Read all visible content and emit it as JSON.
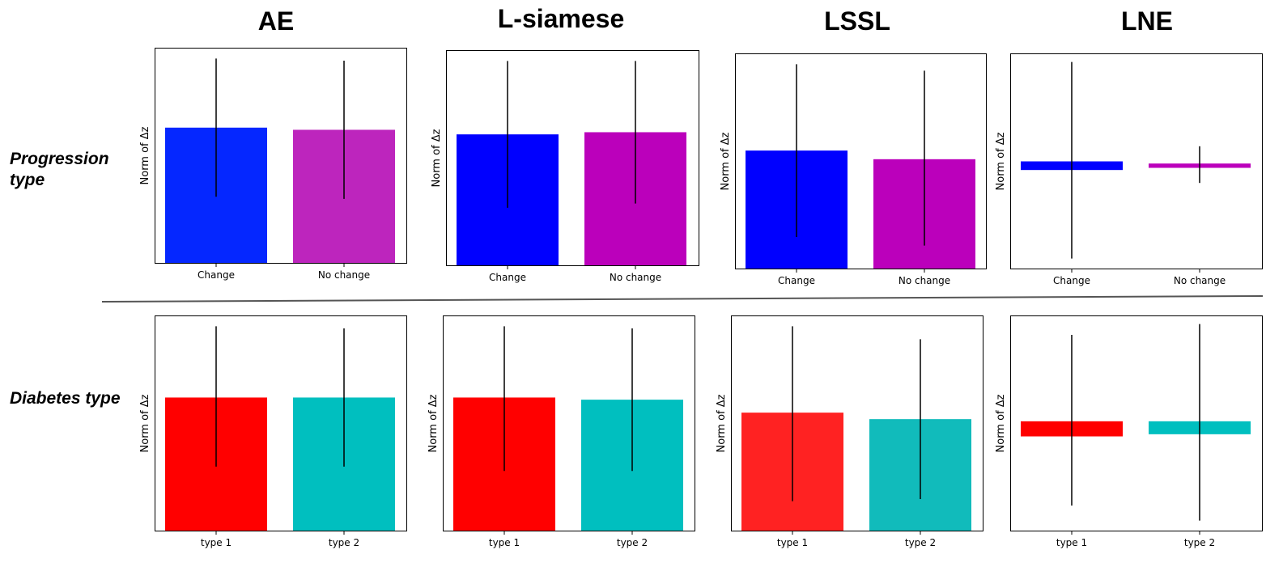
{
  "column_titles": [
    "AE",
    "L-siamese",
    "LSSL",
    "LNE"
  ],
  "row_labels": {
    "progression": "Progression type",
    "diabetes": "Diabetes type"
  },
  "chart_data": [
    {
      "type": "bar",
      "title": "AE",
      "row": "Progression type",
      "ylabel": "Norm of Δz",
      "categories": [
        "Change",
        "No change"
      ],
      "values": [
        0.63,
        0.62
      ],
      "error_low": [
        0.31,
        0.3
      ],
      "error_high": [
        0.95,
        0.94
      ],
      "colors": [
        "#0527ff",
        "#bd25bd"
      ],
      "ylim": [
        0,
        1
      ]
    },
    {
      "type": "bar",
      "title": "L-siamese",
      "row": "Progression type",
      "ylabel": "Norm of Δz",
      "categories": [
        "Change",
        "No change"
      ],
      "values": [
        0.61,
        0.62
      ],
      "error_low": [
        0.27,
        0.29
      ],
      "error_high": [
        0.95,
        0.95
      ],
      "colors": [
        "#0000ff",
        "#bb00bb"
      ],
      "ylim": [
        0,
        1
      ]
    },
    {
      "type": "bar",
      "title": "LSSL",
      "row": "Progression type",
      "ylabel": "Norm of Δz",
      "categories": [
        "Change",
        "No change"
      ],
      "values": [
        0.55,
        0.51
      ],
      "error_low": [
        0.15,
        0.11
      ],
      "error_high": [
        0.95,
        0.92
      ],
      "colors": [
        "#0000ff",
        "#bb00bb"
      ],
      "ylim": [
        0,
        1
      ]
    },
    {
      "type": "bar",
      "title": "LNE",
      "row": "Progression type",
      "ylabel": "Norm of Δz",
      "categories": [
        "Change",
        "No change"
      ],
      "values": [
        0.46,
        0.47
      ],
      "bar_bottom": [
        0.5,
        0.49
      ],
      "error_low": [
        0.05,
        0.4
      ],
      "error_high": [
        0.96,
        0.57
      ],
      "colors": [
        "#0000ff",
        "#bb00bb"
      ],
      "ylim": [
        0,
        1
      ]
    },
    {
      "type": "bar",
      "title": "AE",
      "row": "Diabetes type",
      "ylabel": "Norm of Δz",
      "categories": [
        "type 1",
        "type 2"
      ],
      "values": [
        0.62,
        0.62
      ],
      "error_low": [
        0.3,
        0.3
      ],
      "error_high": [
        0.95,
        0.94
      ],
      "colors": [
        "#ff0000",
        "#00bfbf"
      ],
      "ylim": [
        0,
        1
      ]
    },
    {
      "type": "bar",
      "title": "L-siamese",
      "row": "Diabetes type",
      "ylabel": "Norm of Δz",
      "categories": [
        "type 1",
        "type 2"
      ],
      "values": [
        0.62,
        0.61
      ],
      "error_low": [
        0.28,
        0.28
      ],
      "error_high": [
        0.95,
        0.94
      ],
      "colors": [
        "#ff0000",
        "#00bfbf"
      ],
      "ylim": [
        0,
        1
      ]
    },
    {
      "type": "bar",
      "title": "LSSL",
      "row": "Diabetes type",
      "ylabel": "Norm of Δz",
      "categories": [
        "type 1",
        "type 2"
      ],
      "values": [
        0.55,
        0.52
      ],
      "error_low": [
        0.14,
        0.15
      ],
      "error_high": [
        0.95,
        0.89
      ],
      "colors": [
        "#ff2222",
        "#11bbbb"
      ],
      "ylim": [
        0,
        1
      ]
    },
    {
      "type": "bar",
      "title": "LNE",
      "row": "Diabetes type",
      "ylabel": "Norm of Δz",
      "categories": [
        "type 1",
        "type 2"
      ],
      "values": [
        0.44,
        0.45
      ],
      "bar_bottom": [
        0.51,
        0.51
      ],
      "error_low": [
        0.12,
        0.05
      ],
      "error_high": [
        0.91,
        0.96
      ],
      "colors": [
        "#ff0000",
        "#00bfbf"
      ],
      "ylim": [
        0,
        1
      ]
    }
  ]
}
